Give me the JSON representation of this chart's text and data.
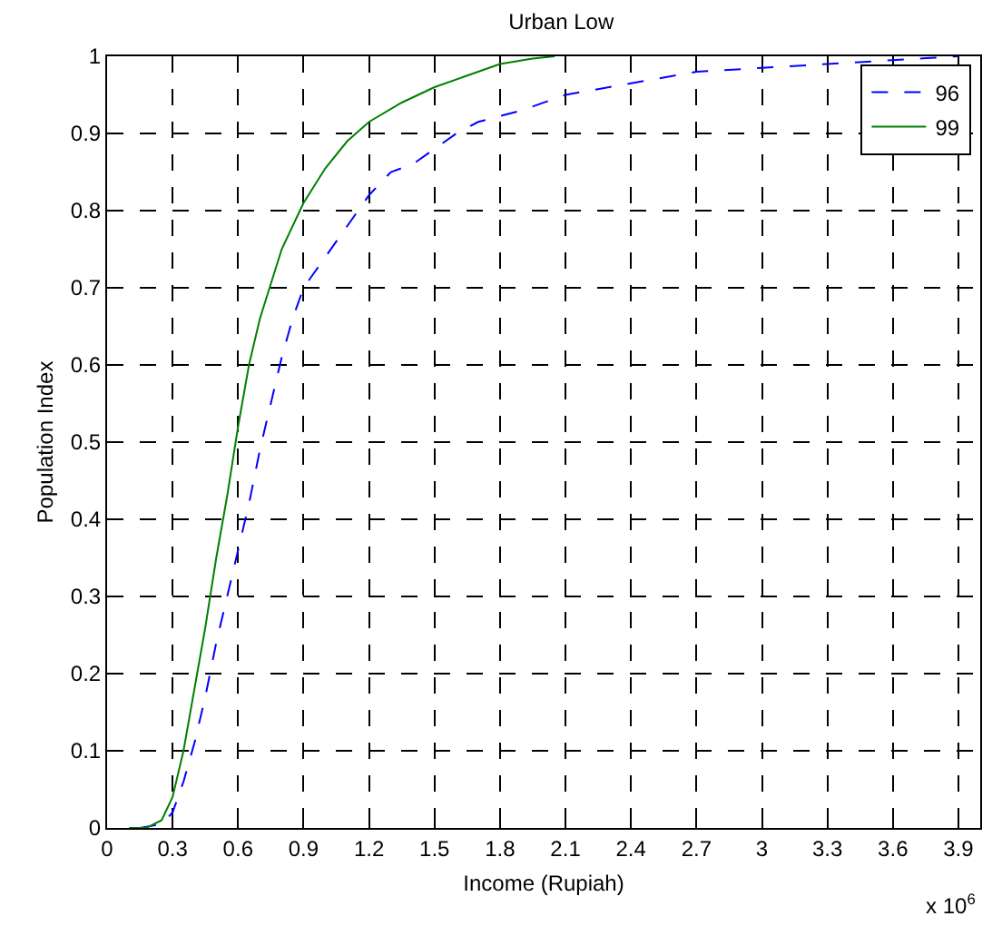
{
  "chart_data": {
    "type": "line",
    "title": "Urban Low",
    "xlabel": "Income (Rupiah)",
    "ylabel": "Population Index",
    "annotations": [
      "x 10$^{6}$"
    ],
    "xlim": [
      0,
      4
    ],
    "xticks": [
      0,
      0.3,
      0.6,
      0.9,
      1.2,
      1.5,
      1.8,
      2.1,
      2.4,
      2.7,
      3,
      3.3,
      3.6,
      3.9
    ],
    "ylim": [
      0,
      1
    ],
    "yticks": [
      0,
      0.1,
      0.2,
      0.3,
      0.4,
      0.5,
      0.6,
      0.7,
      0.8,
      0.9,
      1
    ],
    "grid": true,
    "legend": "top right",
    "marker": "none",
    "series": [
      {
        "name": "96",
        "color": "#0000ff",
        "line_style": "dashed",
        "x": [
          0.15,
          0.25,
          0.3,
          0.35,
          0.4,
          0.45,
          0.5,
          0.55,
          0.6,
          0.65,
          0.7,
          0.75,
          0.8,
          0.85,
          0.9,
          0.95,
          1.0,
          1.1,
          1.2,
          1.3,
          1.4,
          1.5,
          1.6,
          1.7,
          1.9,
          2.1,
          2.3,
          2.5,
          2.7,
          3.0,
          3.3,
          3.6,
          3.9
        ],
        "values": [
          0,
          0.005,
          0.02,
          0.06,
          0.11,
          0.17,
          0.24,
          0.3,
          0.36,
          0.42,
          0.49,
          0.55,
          0.61,
          0.66,
          0.7,
          0.72,
          0.74,
          0.78,
          0.82,
          0.85,
          0.86,
          0.88,
          0.9,
          0.915,
          0.93,
          0.95,
          0.96,
          0.97,
          0.98,
          0.985,
          0.99,
          0.995,
          1.0
        ]
      },
      {
        "name": "99",
        "color": "#008000",
        "line_style": "solid",
        "x": [
          0.1,
          0.18,
          0.25,
          0.3,
          0.35,
          0.4,
          0.45,
          0.5,
          0.55,
          0.6,
          0.65,
          0.7,
          0.8,
          0.9,
          1.0,
          1.1,
          1.2,
          1.35,
          1.5,
          1.65,
          1.8,
          1.95,
          2.05
        ],
        "values": [
          0,
          0,
          0.01,
          0.04,
          0.1,
          0.18,
          0.26,
          0.35,
          0.43,
          0.52,
          0.6,
          0.66,
          0.75,
          0.81,
          0.855,
          0.89,
          0.915,
          0.94,
          0.96,
          0.975,
          0.99,
          0.997,
          1.0
        ]
      }
    ]
  }
}
